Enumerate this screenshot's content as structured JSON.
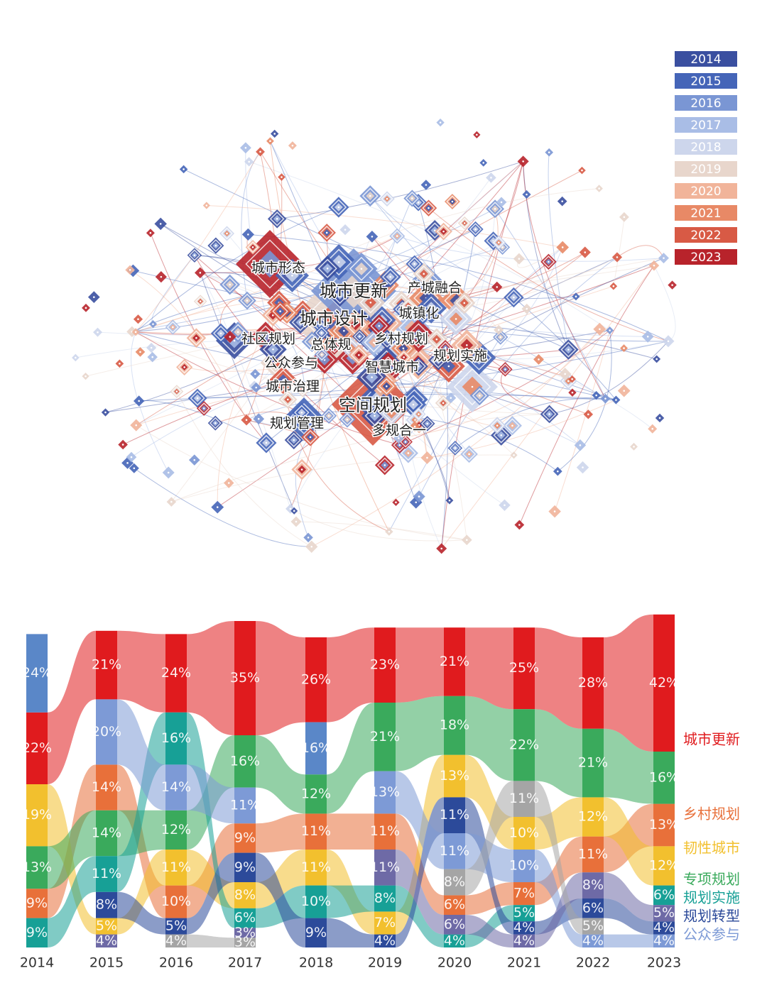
{
  "chart_data": [
    {
      "type": "network",
      "legend": [
        {
          "label": "2014",
          "color": "#3a4fa0"
        },
        {
          "label": "2015",
          "color": "#4565b8"
        },
        {
          "label": "2016",
          "color": "#7a96d4"
        },
        {
          "label": "2017",
          "color": "#a9bde6"
        },
        {
          "label": "2018",
          "color": "#cdd6ec"
        },
        {
          "label": "2019",
          "color": "#e8d6cc"
        },
        {
          "label": "2020",
          "color": "#f1b49a"
        },
        {
          "label": "2021",
          "color": "#e88966"
        },
        {
          "label": "2022",
          "color": "#d85a45"
        },
        {
          "label": "2023",
          "color": "#b8232b"
        }
      ],
      "nodes": [
        {
          "label": "城市形态"
        },
        {
          "label": "城市更新"
        },
        {
          "label": "产城融合"
        },
        {
          "label": "城市设计"
        },
        {
          "label": "城镇化"
        },
        {
          "label": "社区规划"
        },
        {
          "label": "总体规"
        },
        {
          "label": "乡村规划"
        },
        {
          "label": "规划实施"
        },
        {
          "label": "公众参与"
        },
        {
          "label": "智慧城市"
        },
        {
          "label": "城市治理"
        },
        {
          "label": "空间规划"
        },
        {
          "label": "规划管理"
        },
        {
          "label": "多规合一"
        }
      ]
    },
    {
      "type": "ribbon",
      "categories": [
        "2014",
        "2015",
        "2016",
        "2017",
        "2018",
        "2019",
        "2020",
        "2021",
        "2022",
        "2023"
      ],
      "series": [
        {
          "name": "城市更新",
          "color": "#e01b1e",
          "values": [
            22,
            21,
            24,
            35,
            26,
            23,
            21,
            25,
            28,
            42
          ],
          "value_labels": [
            "22%",
            "21%",
            "24%",
            "35%",
            "26%",
            "23%",
            "21%",
            "25%",
            "28%",
            "42%"
          ]
        },
        {
          "name": "乡村规划",
          "color": "#e8703a",
          "values": [
            9,
            14,
            10,
            9,
            11,
            11,
            6,
            7,
            11,
            13
          ],
          "value_labels": [
            "9%",
            "14%",
            "10%",
            "9%",
            "11%",
            "11%",
            "6%",
            "7%",
            "11%",
            "13%"
          ]
        },
        {
          "name": "韧性城市",
          "color": "#f2c02e",
          "values": [
            19,
            5,
            11,
            8,
            11,
            7,
            13,
            10,
            12,
            12
          ],
          "value_labels": [
            "19%",
            "5%",
            "11%",
            "8%",
            "11%",
            "7%",
            "13%",
            "10%",
            "12%",
            "12%"
          ]
        },
        {
          "name": "专项规划",
          "color": "#3aaa5c",
          "values": [
            13,
            14,
            12,
            16,
            12,
            21,
            18,
            22,
            21,
            16
          ],
          "value_labels": [
            "13%",
            "14%",
            "12%",
            "16%",
            "12%",
            "21%",
            "18%",
            "22%",
            "21%",
            "16%"
          ]
        },
        {
          "name": "规划实施",
          "color": "#17a096",
          "values": [
            9,
            11,
            16,
            6,
            10,
            8,
            4,
            5,
            null,
            6
          ],
          "value_labels": [
            "9%",
            "11%",
            "16%",
            "6%",
            "10%",
            "8%",
            "4%",
            "5%",
            null,
            "6%"
          ]
        },
        {
          "name": "规划转型",
          "color": "#2c4a9a",
          "values": [
            null,
            8,
            5,
            9,
            9,
            4,
            11,
            4,
            6,
            4
          ],
          "value_labels": [
            null,
            "8%",
            "5%",
            "9%",
            "9%",
            "4%",
            "11%",
            "4%",
            "6%",
            "4%"
          ]
        },
        {
          "name": "公众参与",
          "color": "#7d9ad6",
          "values": [
            null,
            20,
            14,
            11,
            null,
            13,
            11,
            10,
            4,
            4
          ],
          "value_labels": [
            null,
            "20%",
            "14%",
            "11%",
            null,
            "13%",
            "11%",
            "10%",
            "4%",
            "4%"
          ]
        },
        {
          "color": "#5a87c8",
          "values": [
            24,
            null,
            null,
            null,
            16,
            null,
            null,
            null,
            null,
            null
          ],
          "value_labels": [
            "24%",
            null,
            null,
            null,
            "16%",
            null,
            null,
            null,
            null,
            null
          ]
        },
        {
          "color": "#6e6aa6",
          "values": [
            null,
            4,
            null,
            3,
            null,
            11,
            6,
            4,
            8,
            5
          ],
          "value_labels": [
            null,
            "4%",
            null,
            "3%",
            null,
            "11%",
            "6%",
            "4%",
            "8%",
            "5%"
          ]
        },
        {
          "color": "#a5a5a5",
          "values": [
            null,
            null,
            4,
            3,
            null,
            null,
            8,
            11,
            5,
            null
          ],
          "value_labels": [
            null,
            null,
            "4%",
            "3%",
            null,
            null,
            "8%",
            "11%",
            "5%",
            null
          ]
        }
      ]
    }
  ]
}
